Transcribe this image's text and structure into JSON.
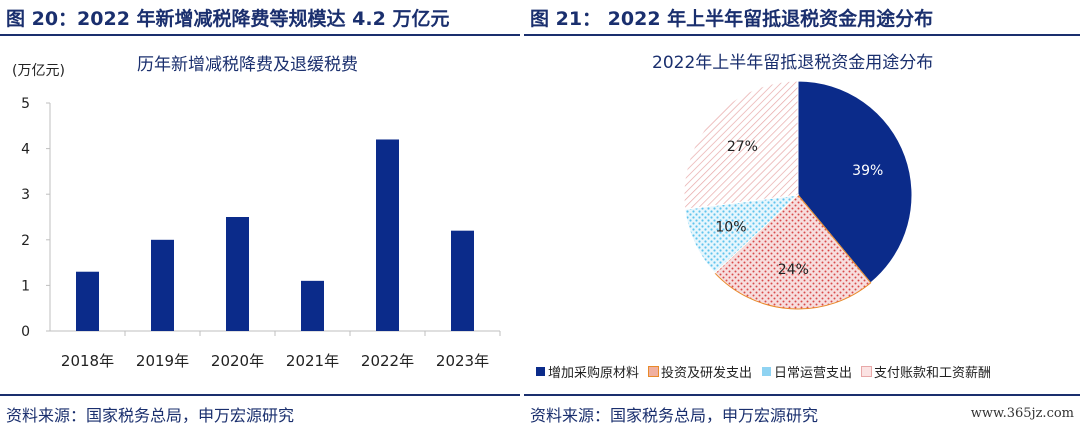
{
  "left": {
    "figure_title": "图 20：2022 年新增减税降费等规模达 4.2 万亿元",
    "source": "资料来源：国家税务总局，申万宏源研究"
  },
  "right": {
    "figure_title": "图 21：  2022 年上半年留抵退税资金用途分布",
    "source": "资料来源：国家税务总局，申万宏源研究"
  },
  "watermark": "www.365jz.com",
  "colors": {
    "navy": "#0b2b8a",
    "pink": "#e9a3a3",
    "cyan": "#8fd3f2",
    "light_pink": "#f6d2d2"
  },
  "chart_data": [
    {
      "type": "bar",
      "title": "历年新增减税降费及退缓税费",
      "ylabel": "(万亿元)",
      "categories": [
        "2018年",
        "2019年",
        "2020年",
        "2021年",
        "2022年",
        "2023年"
      ],
      "values": [
        1.3,
        2.0,
        2.5,
        1.1,
        4.2,
        2.2
      ],
      "ylim": [
        0,
        5
      ],
      "yticks": [
        0,
        1,
        2,
        3,
        4,
        5
      ],
      "grid": false
    },
    {
      "type": "pie",
      "title": "2022年上半年留抵退税资金用途分布",
      "labels": [
        "增加采购原材料",
        "投资及研发支出",
        "日常运营支出",
        "支付账款和工资薪酬"
      ],
      "values": [
        39,
        24,
        10,
        27
      ],
      "value_labels": [
        "39%",
        "24%",
        "10%",
        "27%"
      ],
      "legend_position": "bottom"
    }
  ]
}
